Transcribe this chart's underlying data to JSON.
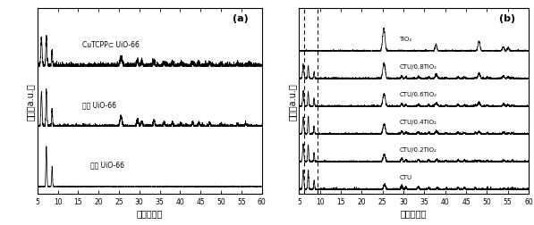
{
  "fig_width": 5.97,
  "fig_height": 2.53,
  "dpi": 100,
  "background_color": "#ffffff",
  "xlabel_a": "角度（度）",
  "ylabel_a": "强度（a.u.）",
  "xlabel_b": "角度（度）",
  "ylabel_b": "强度（a.u.）",
  "xmin": 5,
  "xmax": 60,
  "xticks": [
    5,
    10,
    15,
    20,
    25,
    30,
    35,
    40,
    45,
    50,
    55,
    60
  ],
  "panel_a_label": "(a)",
  "panel_b_label": "(b)",
  "panel_a_curves_bottom_to_top": [
    "模拟 UiO-66",
    "实验 UiO-66",
    "CuTCPP⊂ UiO-66"
  ],
  "panel_b_curves_bottom_to_top": [
    "CTU",
    "CTU/0.2TiO₂",
    "CTU/0.4TiO₂",
    "CTU/0.6TiO₂",
    "CTU/0.8TiO₂",
    "TiO₂"
  ],
  "line_color": "#000000",
  "seed": 42,
  "dashed_lines_b": [
    6.2,
    9.5
  ]
}
